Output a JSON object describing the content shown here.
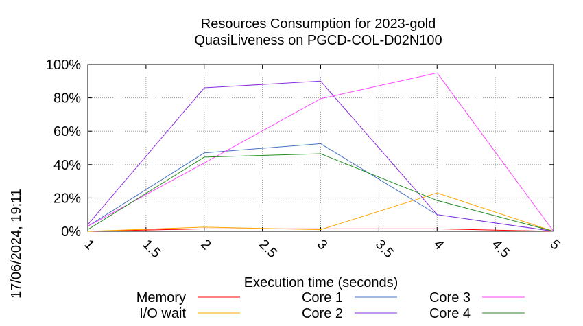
{
  "chart_data": {
    "type": "line",
    "title": "Resources Consumption for 2023-gold",
    "subtitle": "QuasiLiveness on PGCD-COL-D02N100",
    "xlabel": "Execution time (seconds)",
    "ylabel": "",
    "side_label": "17/06/2024, 19:11",
    "xlim": [
      1,
      5
    ],
    "ylim": [
      0,
      100
    ],
    "x_ticks": [
      "1",
      "1.5",
      "2",
      "2.5",
      "3",
      "3.5",
      "4",
      "4.5",
      "5"
    ],
    "y_ticks": [
      "0%",
      "20%",
      "40%",
      "60%",
      "80%",
      "100%"
    ],
    "grid": true,
    "legend_position": "bottom",
    "x": [
      1,
      2,
      3,
      4,
      5
    ],
    "series": [
      {
        "name": "Memory",
        "color": "#ff0000",
        "values": [
          0,
          1.5,
          1.5,
          1.5,
          0
        ]
      },
      {
        "name": "I/O wait",
        "color": "#ffa500",
        "values": [
          0,
          2.5,
          1,
          23,
          0
        ]
      },
      {
        "name": "Core 1",
        "color": "#4472c4",
        "values": [
          3,
          47,
          52.5,
          10,
          0
        ]
      },
      {
        "name": "Core 2",
        "color": "#8a2be2",
        "values": [
          4,
          86,
          90,
          10,
          0
        ]
      },
      {
        "name": "Core 3",
        "color": "#ff44ff",
        "values": [
          3,
          41,
          79.5,
          95,
          0
        ]
      },
      {
        "name": "Core 4",
        "color": "#228b22",
        "values": [
          1,
          44.5,
          46.5,
          18.5,
          0
        ]
      }
    ]
  }
}
